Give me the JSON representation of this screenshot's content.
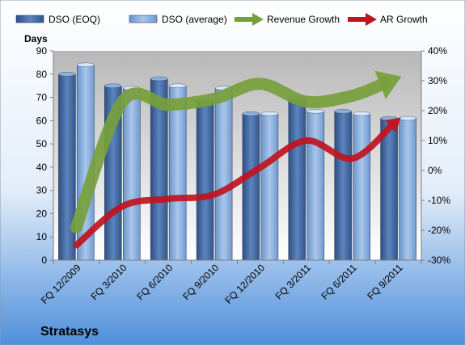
{
  "chart_data": {
    "type": "bar",
    "title": "Stratasys",
    "ylabel": "Days",
    "categories": [
      "FQ 12/2009",
      "FQ 3/2010",
      "FQ 6/2010",
      "FQ 9/2010",
      "FQ 12/2010",
      "FQ 3/2011",
      "FQ 6/2011",
      "FQ 9/2011"
    ],
    "ylim": [
      0,
      90
    ],
    "y_ticks": [
      0,
      10,
      20,
      30,
      40,
      50,
      60,
      70,
      80,
      90
    ],
    "y2lim": [
      -30,
      40
    ],
    "y2_ticks": [
      "-30%",
      "-20%",
      "-10%",
      "0%",
      "10%",
      "20%",
      "30%",
      "40%"
    ],
    "y2_tick_values": [
      -30,
      -20,
      -10,
      0,
      10,
      20,
      30,
      40
    ],
    "legend_position": "top",
    "grid": false,
    "series": [
      {
        "name": "DSO (EOQ)",
        "type": "bar",
        "axis": "left",
        "color": "#4A6FA5",
        "values": [
          80,
          75,
          78,
          69,
          63,
          70,
          64,
          61
        ]
      },
      {
        "name": "DSO (average)",
        "type": "bar",
        "axis": "left",
        "color": "#8DB0DC",
        "values": [
          84,
          74,
          75,
          74,
          63,
          64,
          63,
          61
        ]
      },
      {
        "name": "Revenue Growth",
        "type": "line",
        "axis": "right",
        "color": "#77A03C",
        "values": [
          -19,
          23,
          22,
          24,
          29,
          23,
          25,
          31
        ]
      },
      {
        "name": "AR Growth",
        "type": "line",
        "axis": "right",
        "color": "#C0141E",
        "values": [
          -25,
          -12,
          -9.5,
          -8,
          1,
          10,
          4,
          17
        ]
      }
    ]
  }
}
